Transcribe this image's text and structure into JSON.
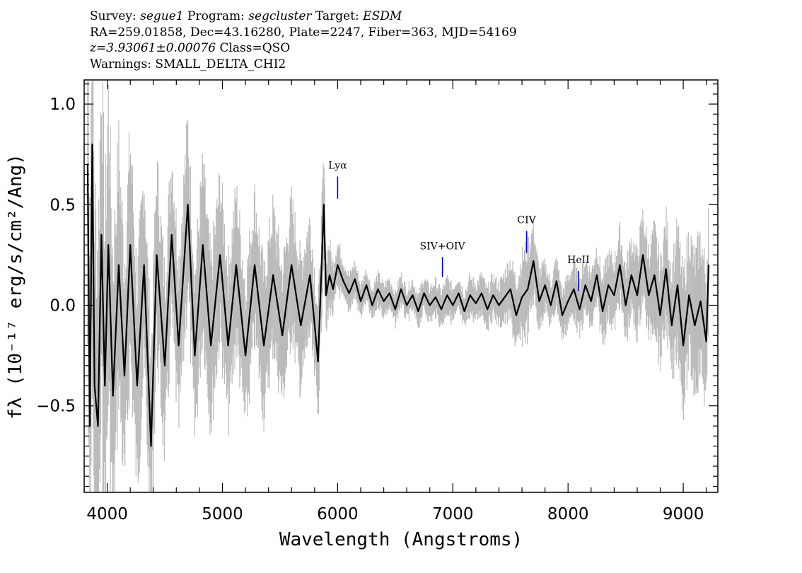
{
  "header": {
    "survey_label": "Survey:",
    "survey_value": "segue1",
    "program_label": "Program:",
    "program_value": "segcluster",
    "target_label": "Target:",
    "target_value": "ESDM",
    "coords_line": "RA=259.01858, Dec=43.16280, Plate=2247, Fiber=363, MJD=54169",
    "redshift": "z=3.93061±0.00076",
    "class_text": "Class=QSO",
    "warnings": "Warnings: SMALL_DELTA_CHI2"
  },
  "chart_data": {
    "type": "line",
    "xlabel": "Wavelength (Angstroms)",
    "ylabel": "fλ (10⁻¹⁷ erg/s/cm²/Ang)",
    "xlim": [
      3800,
      9300
    ],
    "ylim": [
      -0.93,
      1.12
    ],
    "x_ticks": [
      4000,
      5000,
      6000,
      7000,
      8000,
      9000
    ],
    "y_ticks": [
      -0.5,
      0.0,
      0.5,
      1.0
    ],
    "y_tick_labels": [
      "−0.5",
      "0.0",
      "0.5",
      "1.0"
    ],
    "grid": false,
    "series": [
      {
        "role": "flux",
        "color": "#000000",
        "x": [
          3830,
          3850,
          3870,
          3890,
          3920,
          3950,
          3980,
          4010,
          4050,
          4100,
          4150,
          4200,
          4260,
          4320,
          4380,
          4430,
          4500,
          4560,
          4620,
          4700,
          4760,
          4830,
          4900,
          4980,
          5050,
          5120,
          5200,
          5280,
          5360,
          5440,
          5520,
          5600,
          5680,
          5760,
          5830,
          5880,
          5900,
          5930,
          5960,
          6000,
          6050,
          6100,
          6150,
          6200,
          6250,
          6300,
          6350,
          6400,
          6450,
          6500,
          6550,
          6600,
          6650,
          6700,
          6750,
          6800,
          6850,
          6900,
          6950,
          7000,
          7050,
          7100,
          7150,
          7200,
          7250,
          7300,
          7350,
          7400,
          7450,
          7500,
          7550,
          7600,
          7650,
          7700,
          7750,
          7800,
          7850,
          7900,
          7950,
          8000,
          8050,
          8100,
          8150,
          8200,
          8250,
          8300,
          8350,
          8400,
          8450,
          8500,
          8550,
          8600,
          8650,
          8700,
          8750,
          8800,
          8850,
          8900,
          8950,
          9000,
          9050,
          9100,
          9150,
          9200,
          9220
        ],
        "y": [
          0.7,
          -0.6,
          0.8,
          -0.4,
          -0.6,
          0.35,
          -0.4,
          0.3,
          -0.45,
          0.2,
          -0.35,
          0.3,
          -0.4,
          0.2,
          -0.7,
          0.25,
          -0.3,
          0.35,
          -0.2,
          0.5,
          -0.25,
          0.3,
          -0.2,
          0.25,
          -0.2,
          0.2,
          -0.25,
          0.2,
          -0.2,
          0.15,
          -0.15,
          0.2,
          -0.1,
          0.15,
          -0.28,
          0.5,
          0.05,
          0.15,
          0.08,
          0.2,
          0.12,
          0.06,
          0.13,
          0.02,
          0.1,
          0.0,
          0.08,
          0.02,
          0.06,
          -0.02,
          0.08,
          0.0,
          0.05,
          -0.03,
          0.06,
          0.0,
          0.04,
          -0.02,
          0.05,
          0.0,
          0.06,
          -0.03,
          0.05,
          0.01,
          0.06,
          -0.02,
          0.05,
          0.0,
          0.04,
          0.08,
          -0.05,
          0.04,
          0.08,
          0.22,
          0.02,
          0.1,
          0.0,
          0.12,
          -0.05,
          0.02,
          0.08,
          -0.02,
          0.1,
          0.02,
          0.15,
          -0.03,
          0.1,
          0.05,
          0.2,
          0.0,
          0.15,
          0.05,
          0.25,
          0.05,
          0.15,
          -0.05,
          0.18,
          -0.1,
          0.1,
          -0.2,
          0.05,
          -0.1,
          0.02,
          -0.18,
          0.2
        ]
      },
      {
        "role": "noise",
        "color": "#bbbbbb",
        "x": [
          3850,
          3950,
          4100,
          4300,
          4500,
          4700,
          4900,
          5100,
          5300,
          5500,
          5700,
          5880,
          5950,
          6100,
          6300,
          6600,
          7000,
          7400,
          7640,
          7800,
          8000,
          8200,
          8400,
          8600,
          8800,
          9000,
          9200
        ],
        "y": [
          0.9,
          0.8,
          0.55,
          0.45,
          0.4,
          0.38,
          0.36,
          0.34,
          0.32,
          0.3,
          0.28,
          0.22,
          0.12,
          0.08,
          0.07,
          0.07,
          0.08,
          0.09,
          0.2,
          0.1,
          0.11,
          0.13,
          0.15,
          0.18,
          0.22,
          0.28,
          0.3
        ]
      }
    ],
    "lines": [
      {
        "label": "Lyα",
        "x": 6000,
        "y_top": 0.64,
        "y_bottom": 0.53
      },
      {
        "label": "SIV+OIV",
        "x": 6910,
        "y_top": 0.24,
        "y_bottom": 0.14
      },
      {
        "label": "CIV",
        "x": 7640,
        "y_top": 0.37,
        "y_bottom": 0.26
      },
      {
        "label": "HeII",
        "x": 8090,
        "y_top": 0.17,
        "y_bottom": 0.07
      }
    ]
  }
}
